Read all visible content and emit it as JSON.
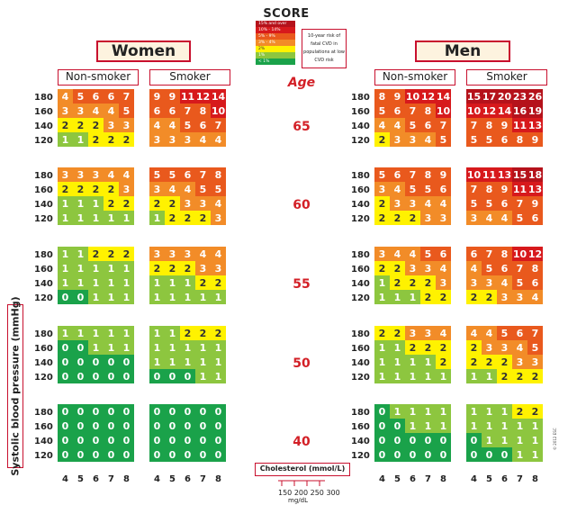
{
  "header": {
    "logo": "SCORE",
    "women": "Women",
    "men": "Men",
    "non_smoker": "Non-smoker",
    "smoker": "Smoker",
    "age": "Age"
  },
  "legend": {
    "items": [
      {
        "label": "15% and over",
        "color": "#b5121b"
      },
      {
        "label": "10% - 14%",
        "color": "#d7191c"
      },
      {
        "label": "5% - 9%",
        "color": "#e9591d"
      },
      {
        "label": "3% - 4%",
        "color": "#f28c28"
      },
      {
        "label": "2%",
        "color": "#fff200"
      },
      {
        "label": "1%",
        "color": "#8dc63f"
      },
      {
        "label": "< 1%",
        "color": "#1aa24a"
      }
    ],
    "note": "10-year risk of fatal CVD in populations at low CVD risk"
  },
  "footer": {
    "cholesterol": "Cholesterol (mmol/L)",
    "mgdl_ticks": "150 200 250 300",
    "mgdl_unit": "mg/dL",
    "credit": "© 2012 ESC"
  },
  "chart_data": {
    "type": "heatmap",
    "ylabel": "Systolic blood pressure (mmHg)",
    "xlabel": "Cholesterol (mmol/L)",
    "cholesterol": [
      4,
      5,
      6,
      7,
      8
    ],
    "sbp": [
      180,
      160,
      140,
      120
    ],
    "ages": [
      65,
      60,
      55,
      50,
      40
    ],
    "groups": [
      {
        "sex": "Women",
        "smoking": "Non-smoker",
        "grids": [
          [
            [
              4,
              5,
              6,
              6,
              7
            ],
            [
              3,
              3,
              4,
              4,
              5
            ],
            [
              2,
              2,
              2,
              3,
              3
            ],
            [
              1,
              1,
              2,
              2,
              2
            ]
          ],
          [
            [
              3,
              3,
              3,
              4,
              4
            ],
            [
              2,
              2,
              2,
              2,
              3
            ],
            [
              1,
              1,
              1,
              2,
              2
            ],
            [
              1,
              1,
              1,
              1,
              1
            ]
          ],
          [
            [
              1,
              1,
              2,
              2,
              2
            ],
            [
              1,
              1,
              1,
              1,
              1
            ],
            [
              1,
              1,
              1,
              1,
              1
            ],
            [
              0,
              0,
              1,
              1,
              1
            ]
          ],
          [
            [
              1,
              1,
              1,
              1,
              1
            ],
            [
              0,
              0,
              1,
              1,
              1
            ],
            [
              0,
              0,
              0,
              0,
              0
            ],
            [
              0,
              0,
              0,
              0,
              0
            ]
          ],
          [
            [
              0,
              0,
              0,
              0,
              0
            ],
            [
              0,
              0,
              0,
              0,
              0
            ],
            [
              0,
              0,
              0,
              0,
              0
            ],
            [
              0,
              0,
              0,
              0,
              0
            ]
          ]
        ]
      },
      {
        "sex": "Women",
        "smoking": "Smoker",
        "grids": [
          [
            [
              9,
              9,
              11,
              12,
              14
            ],
            [
              6,
              6,
              7,
              8,
              10
            ],
            [
              4,
              4,
              5,
              6,
              7
            ],
            [
              3,
              3,
              3,
              4,
              4
            ]
          ],
          [
            [
              5,
              5,
              6,
              7,
              8
            ],
            [
              3,
              4,
              4,
              5,
              5
            ],
            [
              2,
              2,
              3,
              3,
              4
            ],
            [
              1,
              2,
              2,
              2,
              3
            ]
          ],
          [
            [
              3,
              3,
              3,
              4,
              4
            ],
            [
              2,
              2,
              2,
              3,
              3
            ],
            [
              1,
              1,
              1,
              2,
              2
            ],
            [
              1,
              1,
              1,
              1,
              1
            ]
          ],
          [
            [
              1,
              1,
              2,
              2,
              2
            ],
            [
              1,
              1,
              1,
              1,
              1
            ],
            [
              1,
              1,
              1,
              1,
              1
            ],
            [
              0,
              0,
              0,
              1,
              1
            ]
          ],
          [
            [
              0,
              0,
              0,
              0,
              0
            ],
            [
              0,
              0,
              0,
              0,
              0
            ],
            [
              0,
              0,
              0,
              0,
              0
            ],
            [
              0,
              0,
              0,
              0,
              0
            ]
          ]
        ]
      },
      {
        "sex": "Men",
        "smoking": "Non-smoker",
        "grids": [
          [
            [
              8,
              9,
              10,
              12,
              14
            ],
            [
              5,
              6,
              7,
              8,
              10
            ],
            [
              4,
              4,
              5,
              6,
              7
            ],
            [
              2,
              3,
              3,
              4,
              5
            ]
          ],
          [
            [
              5,
              6,
              7,
              8,
              9
            ],
            [
              3,
              4,
              5,
              5,
              6
            ],
            [
              2,
              3,
              3,
              4,
              4
            ],
            [
              2,
              2,
              2,
              3,
              3
            ]
          ],
          [
            [
              3,
              4,
              4,
              5,
              6
            ],
            [
              2,
              2,
              3,
              3,
              4
            ],
            [
              1,
              2,
              2,
              2,
              3
            ],
            [
              1,
              1,
              1,
              2,
              2
            ]
          ],
          [
            [
              2,
              2,
              3,
              3,
              4
            ],
            [
              1,
              1,
              2,
              2,
              2
            ],
            [
              1,
              1,
              1,
              1,
              2
            ],
            [
              1,
              1,
              1,
              1,
              1
            ]
          ],
          [
            [
              0,
              1,
              1,
              1,
              1
            ],
            [
              0,
              0,
              1,
              1,
              1
            ],
            [
              0,
              0,
              0,
              0,
              0
            ],
            [
              0,
              0,
              0,
              0,
              0
            ]
          ]
        ]
      },
      {
        "sex": "Men",
        "smoking": "Smoker",
        "grids": [
          [
            [
              15,
              17,
              20,
              23,
              26
            ],
            [
              10,
              12,
              14,
              16,
              19
            ],
            [
              7,
              8,
              9,
              11,
              13
            ],
            [
              5,
              5,
              6,
              8,
              9
            ]
          ],
          [
            [
              10,
              11,
              13,
              15,
              18
            ],
            [
              7,
              8,
              9,
              11,
              13
            ],
            [
              5,
              5,
              6,
              7,
              9
            ],
            [
              3,
              4,
              4,
              5,
              6
            ]
          ],
          [
            [
              6,
              7,
              8,
              10,
              12
            ],
            [
              4,
              5,
              6,
              7,
              8
            ],
            [
              3,
              3,
              4,
              5,
              6
            ],
            [
              2,
              2,
              3,
              3,
              4
            ]
          ],
          [
            [
              4,
              4,
              5,
              6,
              7
            ],
            [
              2,
              3,
              3,
              4,
              5
            ],
            [
              2,
              2,
              2,
              3,
              3
            ],
            [
              1,
              1,
              2,
              2,
              2
            ]
          ],
          [
            [
              1,
              1,
              1,
              2,
              2
            ],
            [
              1,
              1,
              1,
              1,
              1
            ],
            [
              0,
              1,
              1,
              1,
              1
            ],
            [
              0,
              0,
              0,
              1,
              1
            ]
          ]
        ]
      }
    ]
  }
}
